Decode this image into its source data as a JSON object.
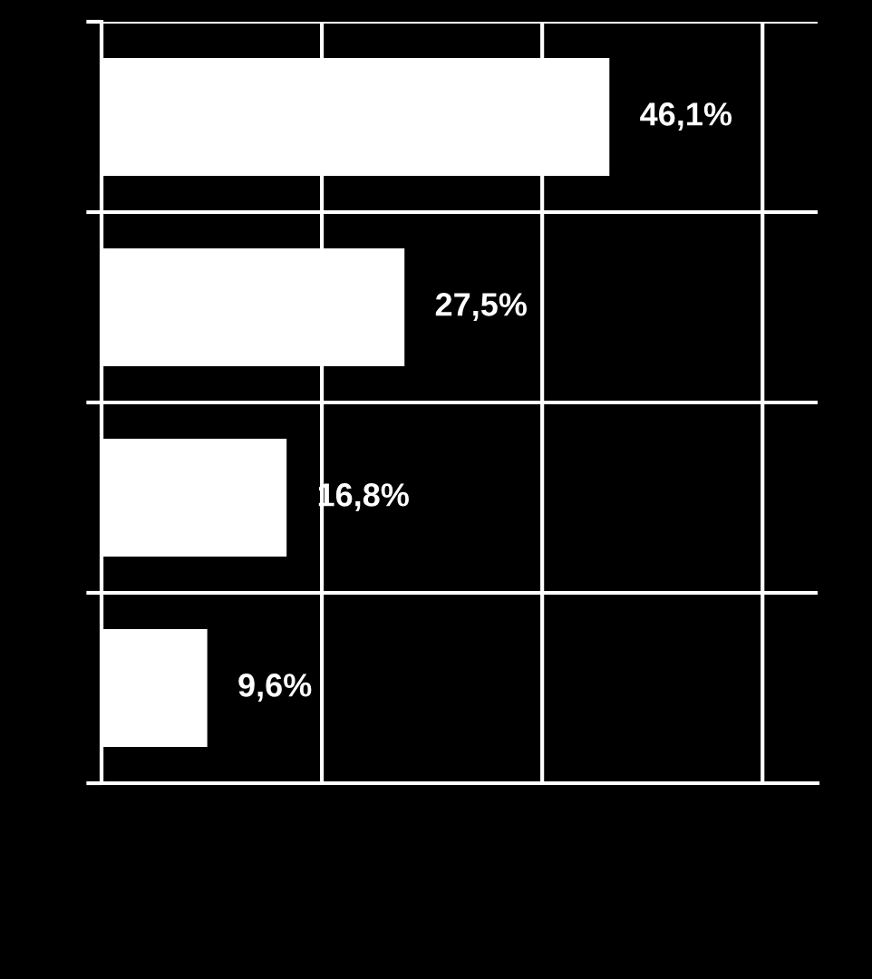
{
  "chart_data": {
    "type": "bar",
    "orientation": "horizontal",
    "categories": [
      null,
      null,
      null,
      null
    ],
    "values": [
      46.1,
      27.5,
      16.8,
      9.6
    ],
    "value_labels": [
      "46,1%",
      "27,5%",
      "16,8%",
      "9,6%"
    ],
    "color": "#ffffff",
    "xlim": [
      0,
      65
    ],
    "xticks": [
      {
        "value": 0,
        "label": null
      },
      {
        "value": 20,
        "label": null
      },
      {
        "value": 40,
        "label": null
      },
      {
        "value": 60,
        "label": null
      }
    ],
    "tick_labels": false,
    "grid": true
  }
}
